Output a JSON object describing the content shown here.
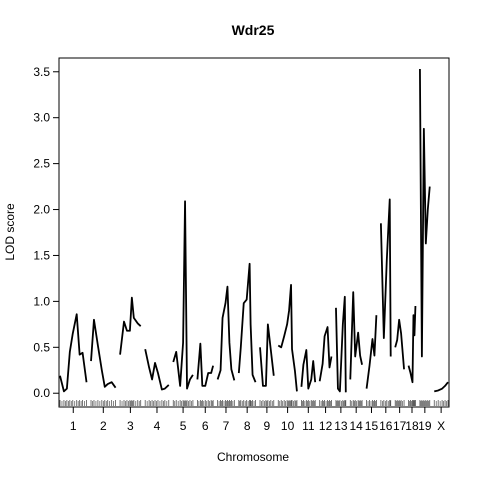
{
  "chart_data": {
    "type": "line",
    "title": "Wdr25",
    "xlabel": "Chromosome",
    "ylabel": "LOD score",
    "ylim": [
      -0.15,
      3.65
    ],
    "yticks": [
      0.0,
      0.5,
      1.0,
      1.5,
      2.0,
      2.5,
      3.0,
      3.5
    ],
    "ytick_labels": [
      "0.0",
      "0.5",
      "1.0",
      "1.5",
      "2.0",
      "2.5",
      "3.0",
      "3.5"
    ],
    "grid": false,
    "legend": "none",
    "line_color": "#000000",
    "chromosomes": [
      {
        "label": "1",
        "points": [
          [
            0,
            0.19
          ],
          [
            4,
            0.02
          ],
          [
            7,
            0.05
          ],
          [
            10,
            0.45
          ],
          [
            13,
            0.65
          ],
          [
            17,
            0.86
          ],
          [
            20,
            0.42
          ],
          [
            23,
            0.44
          ],
          [
            27,
            0.12
          ]
        ]
      },
      {
        "label": "2",
        "points": [
          [
            0,
            0.35
          ],
          [
            3,
            0.8
          ],
          [
            7,
            0.52
          ],
          [
            11,
            0.25
          ],
          [
            14,
            0.07
          ],
          [
            17,
            0.1
          ],
          [
            21,
            0.12
          ],
          [
            25,
            0.06
          ]
        ]
      },
      {
        "label": "3",
        "points": [
          [
            0,
            0.42
          ],
          [
            4,
            0.78
          ],
          [
            7,
            0.68
          ],
          [
            10,
            0.68
          ],
          [
            12,
            1.04
          ],
          [
            14,
            0.82
          ],
          [
            18,
            0.76
          ],
          [
            21,
            0.73
          ]
        ]
      },
      {
        "label": "4",
        "points": [
          [
            0,
            0.48
          ],
          [
            4,
            0.28
          ],
          [
            7,
            0.15
          ],
          [
            10,
            0.33
          ],
          [
            13,
            0.22
          ],
          [
            17,
            0.04
          ],
          [
            20,
            0.05
          ],
          [
            24,
            0.09
          ]
        ]
      },
      {
        "label": "5",
        "points": [
          [
            0,
            0.34
          ],
          [
            3,
            0.45
          ],
          [
            7,
            0.08
          ],
          [
            10,
            0.55
          ],
          [
            12,
            2.09
          ],
          [
            14,
            0.05
          ],
          [
            17,
            0.15
          ],
          [
            20,
            0.2
          ]
        ]
      },
      {
        "label": "6",
        "points": [
          [
            0,
            0.15
          ],
          [
            3,
            0.54
          ],
          [
            5,
            0.08
          ],
          [
            8,
            0.08
          ],
          [
            11,
            0.22
          ],
          [
            14,
            0.22
          ],
          [
            16,
            0.3
          ]
        ]
      },
      {
        "label": "7",
        "points": [
          [
            0,
            0.15
          ],
          [
            3,
            0.25
          ],
          [
            5,
            0.82
          ],
          [
            8,
            0.98
          ],
          [
            10,
            1.16
          ],
          [
            12,
            0.55
          ],
          [
            14,
            0.26
          ],
          [
            17,
            0.14
          ]
        ]
      },
      {
        "label": "8",
        "points": [
          [
            0,
            0.22
          ],
          [
            2,
            0.5
          ],
          [
            5,
            0.98
          ],
          [
            8,
            1.02
          ],
          [
            11,
            1.41
          ],
          [
            12,
            0.75
          ],
          [
            14,
            0.2
          ],
          [
            17,
            0.12
          ]
        ]
      },
      {
        "label": "9",
        "points": [
          [
            0,
            0.5
          ],
          [
            3,
            0.08
          ],
          [
            6,
            0.08
          ],
          [
            8,
            0.75
          ],
          [
            11,
            0.47
          ],
          [
            14,
            0.19
          ]
        ]
      },
      {
        "label": "10",
        "points": [
          [
            0,
            0.52
          ],
          [
            3,
            0.5
          ],
          [
            6,
            0.62
          ],
          [
            9,
            0.75
          ],
          [
            11,
            0.9
          ],
          [
            13,
            1.18
          ],
          [
            14,
            0.48
          ],
          [
            17,
            0.24
          ],
          [
            19,
            0.02
          ]
        ]
      },
      {
        "label": "11",
        "points": [
          [
            0,
            0.07
          ],
          [
            2,
            0.31
          ],
          [
            5,
            0.47
          ],
          [
            7,
            0.05
          ],
          [
            10,
            0.15
          ],
          [
            12,
            0.35
          ],
          [
            14,
            0.12
          ]
        ]
      },
      {
        "label": "12",
        "points": [
          [
            0,
            0.13
          ],
          [
            3,
            0.32
          ],
          [
            5,
            0.62
          ],
          [
            8,
            0.72
          ],
          [
            10,
            0.28
          ],
          [
            12,
            0.4
          ]
        ]
      },
      {
        "label": "13",
        "points": [
          [
            0,
            0.93
          ],
          [
            2,
            0.05
          ],
          [
            4,
            0.02
          ],
          [
            7,
            0.75
          ],
          [
            9,
            1.05
          ],
          [
            10,
            0.01
          ]
        ]
      },
      {
        "label": "14",
        "points": [
          [
            0,
            0.15
          ],
          [
            3,
            1.1
          ],
          [
            5,
            0.4
          ],
          [
            8,
            0.66
          ],
          [
            10,
            0.41
          ],
          [
            12,
            0.31
          ]
        ]
      },
      {
        "label": "15",
        "points": [
          [
            0,
            0.05
          ],
          [
            3,
            0.3
          ],
          [
            6,
            0.59
          ],
          [
            8,
            0.41
          ],
          [
            10,
            0.85
          ]
        ]
      },
      {
        "label": "16",
        "points": [
          [
            0,
            1.85
          ],
          [
            3,
            0.6
          ],
          [
            6,
            1.45
          ],
          [
            9,
            2.11
          ],
          [
            10,
            0.4
          ]
        ]
      },
      {
        "label": "17",
        "points": [
          [
            0,
            0.5
          ],
          [
            2,
            0.58
          ],
          [
            4,
            0.8
          ],
          [
            6,
            0.65
          ],
          [
            9,
            0.26
          ]
        ]
      },
      {
        "label": "18",
        "points": [
          [
            0,
            0.3
          ],
          [
            2,
            0.22
          ],
          [
            4,
            0.12
          ],
          [
            5,
            0.85
          ],
          [
            6,
            0.63
          ],
          [
            7,
            0.95
          ]
        ]
      },
      {
        "label": "19",
        "points": [
          [
            0,
            3.53
          ],
          [
            2,
            0.4
          ],
          [
            4,
            2.88
          ],
          [
            6,
            1.63
          ],
          [
            8,
            2.0
          ],
          [
            10,
            2.25
          ]
        ]
      },
      {
        "label": "X",
        "points": [
          [
            0,
            0.02
          ],
          [
            4,
            0.03
          ],
          [
            8,
            0.05
          ],
          [
            11,
            0.08
          ],
          [
            14,
            0.12
          ]
        ]
      }
    ]
  }
}
